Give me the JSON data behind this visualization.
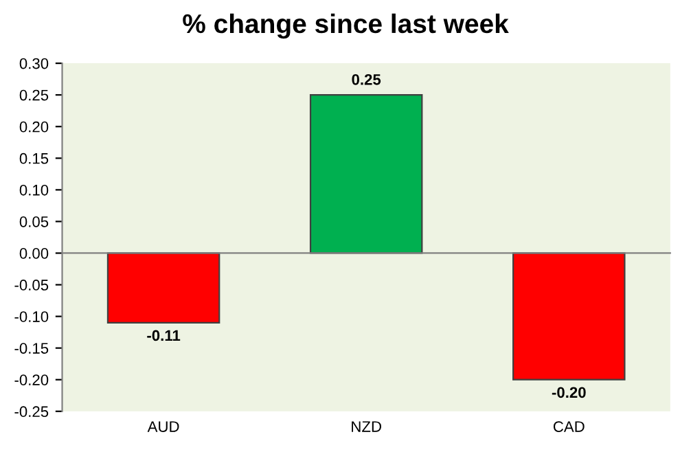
{
  "chart_data": {
    "type": "bar",
    "title": "% change since last week",
    "categories": [
      "AUD",
      "NZD",
      "CAD"
    ],
    "values": [
      -0.11,
      0.25,
      -0.2
    ],
    "colors": [
      "#ff0000",
      "#00b050",
      "#ff0000"
    ],
    "ylim": [
      -0.25,
      0.3
    ],
    "yticks": [
      {
        "value": -0.25,
        "label": "-0.25"
      },
      {
        "value": -0.2,
        "label": "-0.20"
      },
      {
        "value": -0.15,
        "label": "-0.15"
      },
      {
        "value": -0.1,
        "label": "-0.10"
      },
      {
        "value": -0.05,
        "label": "-0.05"
      },
      {
        "value": 0,
        "label": "0.00"
      },
      {
        "value": 0.05,
        "label": "0.05"
      },
      {
        "value": 0.1,
        "label": "0.10"
      },
      {
        "value": 0.15,
        "label": "0.15"
      },
      {
        "value": 0.2,
        "label": "0.20"
      },
      {
        "value": 0.25,
        "label": "0.25"
      },
      {
        "value": 0.3,
        "label": "0.30"
      }
    ],
    "value_labels": [
      "-0.11",
      "0.25",
      "-0.20"
    ],
    "legend": false
  }
}
